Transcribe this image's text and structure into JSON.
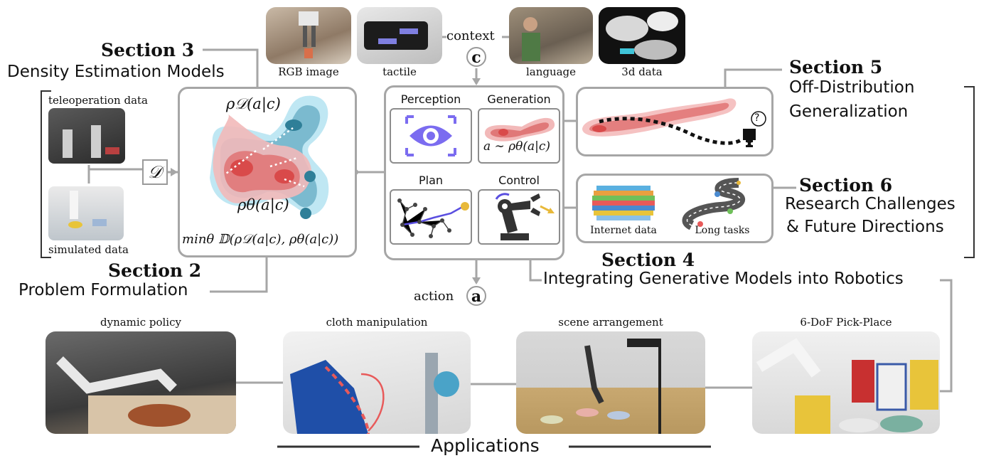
{
  "context": {
    "label": "context",
    "symbol": "c",
    "images": [
      {
        "caption": "RGB image"
      },
      {
        "caption": "tactile"
      },
      {
        "caption": "language"
      },
      {
        "caption": "3d data"
      }
    ]
  },
  "action": {
    "label": "action",
    "symbol": "a"
  },
  "section2": {
    "title": "Section 2",
    "subtitle": "Problem Formulation"
  },
  "section3": {
    "title": "Section 3",
    "subtitle": "Density Estimation Models"
  },
  "section4": {
    "title": "Section 4",
    "subtitle": "Integrating Generative Models into Robotics"
  },
  "section5": {
    "title": "Section 5",
    "subtitle_line1": "Off-Distribution",
    "subtitle_line2": "Generalization"
  },
  "section6": {
    "title": "Section 6",
    "subtitle_line1": "Research Challenges",
    "subtitle_line2": "& Future Directions"
  },
  "data_sources": {
    "teleop": "teleoperation data",
    "sim": "simulated data",
    "dataset_symbol": "𝒟"
  },
  "density": {
    "rho_d": "ρ𝒟(a|c)",
    "rho_theta": "ρθ(a|c)",
    "objective": "minθ 𝔻(ρ𝒟(a|c), ρθ(a|c))"
  },
  "modules": {
    "perception": "Perception",
    "generation": "Generation",
    "generation_formula": "a ∼ ρθ(a|c)",
    "plan": "Plan",
    "control": "Control"
  },
  "challenges": {
    "internet": "Internet data",
    "long_tasks": "Long tasks",
    "question_mark": "?"
  },
  "applications": {
    "title": "Applications",
    "items": [
      {
        "caption": "dynamic policy"
      },
      {
        "caption": "cloth manipulation"
      },
      {
        "caption": "scene arrangement"
      },
      {
        "caption": "6-DoF Pick-Place"
      }
    ]
  },
  "colors": {
    "border": "#a6a6a6",
    "red_dist": "#e06b6b",
    "teal_dist": "#3f8ea8",
    "purple": "#7b6cf0",
    "yellow": "#e8b93a"
  }
}
